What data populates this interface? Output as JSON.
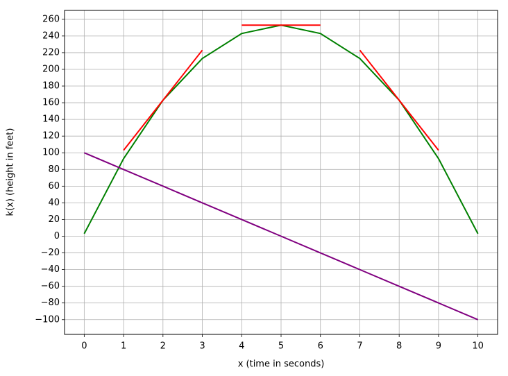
{
  "chart_data": {
    "type": "line",
    "xlabel": "x (time in seconds)",
    "ylabel": "k(x) (height in feet)",
    "series": [
      {
        "color": "#008000",
        "x": [
          0,
          1,
          2,
          3,
          4,
          5,
          6,
          7,
          8,
          9,
          10
        ],
        "values": [
          3,
          93,
          163,
          213,
          243,
          253,
          243,
          213,
          163,
          93,
          3
        ]
      },
      {
        "color": "#800080",
        "x": [
          0,
          1,
          2,
          3,
          4,
          5,
          6,
          7,
          8,
          9,
          10
        ],
        "values": [
          100,
          80,
          60,
          40,
          20,
          0,
          -20,
          -40,
          -60,
          -80,
          -100
        ]
      },
      {
        "color": "#ff0000",
        "x": [
          1,
          3
        ],
        "values": [
          103,
          223
        ]
      },
      {
        "color": "#ff0000",
        "x": [
          4,
          6
        ],
        "values": [
          253,
          253
        ]
      },
      {
        "color": "#ff0000",
        "x": [
          7,
          9
        ],
        "values": [
          223,
          103
        ]
      }
    ],
    "xlim": [
      -0.5,
      10.5
    ],
    "xticks": [
      0,
      1,
      2,
      3,
      4,
      5,
      6,
      7,
      8,
      9,
      10
    ],
    "ylim": [
      -117.65,
      270.65
    ],
    "yticks": [
      {
        "value": -100,
        "label": "−100"
      },
      {
        "value": -80,
        "label": "−80"
      },
      {
        "value": -60,
        "label": "−60"
      },
      {
        "value": -40,
        "label": "−40"
      },
      {
        "value": -20,
        "label": "−20"
      },
      0,
      20,
      40,
      60,
      80,
      100,
      120,
      140,
      160,
      180,
      200,
      220,
      240,
      260
    ],
    "grid": true
  }
}
